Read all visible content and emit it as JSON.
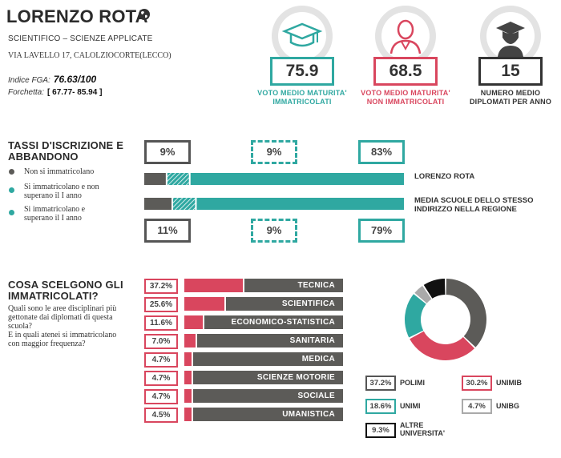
{
  "school": {
    "name": "LORENZO ROTA",
    "type": "SCIENTIFICO – SCIENZE APPLICATE",
    "address": "VIA LAVELLO 17, CALOLZIOCORTE(LECCO)",
    "fga_label": "Indice FGA:",
    "fga_value": "76.63/100",
    "range_label": "Forchetta:",
    "range_value": "[ 67.77- 85.94 ]"
  },
  "stats": [
    {
      "value": "75.9",
      "label_1": "VOTO MEDIO MATURITA'",
      "label_2": "IMMATRICOLATI",
      "color": "#2fa8a1",
      "icon": "graduation-cap-icon"
    },
    {
      "value": "68.5",
      "label_1": "VOTO MEDIO MATURITA'",
      "label_2": "NON IMMATRICOLATI",
      "color": "#d9465e",
      "icon": "person-icon"
    },
    {
      "value": "15",
      "label_1": "NUMERO MEDIO",
      "label_2": "DIPLOMATI PER ANNO",
      "color": "#333333",
      "icon": "graduate-icon"
    }
  ],
  "enrollment": {
    "title_1": "TASSI D'ISCRIZIONE E",
    "title_2": "ABBANDONO",
    "legend": [
      {
        "label": "Non si immatricolano",
        "color": "#5c5b58"
      },
      {
        "label_1": "Si immatricolano e non",
        "label_2": "superano il I anno",
        "color": "#2fa8a1"
      },
      {
        "label_1": "Si immatricolano e",
        "label_2": "superano il I anno",
        "color": "#2fa8a1"
      }
    ],
    "school_values": [
      "9%",
      "9%",
      "83%"
    ],
    "region_values": [
      "11%",
      "9%",
      "79%"
    ],
    "school_label": "LORENZO ROTA",
    "region_label_1": "MEDIA SCUOLE DELLO STESSO",
    "region_label_2": "INDIRIZZO NELLA REGIONE",
    "school_fractions": [
      0.09,
      0.09,
      0.83
    ],
    "region_fractions": [
      0.11,
      0.09,
      0.79
    ]
  },
  "choices": {
    "title_1": "COSA SCELGONO GLI",
    "title_2": "IMMATRICOLATI?",
    "question_lines": [
      "Quali sono le aree disciplinari più",
      "gettonate dai diplomati di questa",
      "scuola?",
      "E in quali atenei si immatricolano",
      "con maggior frequenza?"
    ],
    "areas": [
      {
        "pct": "37.2%",
        "name": "TECNICA",
        "value": 37.2
      },
      {
        "pct": "25.6%",
        "name": "SCIENTIFICA",
        "value": 25.6
      },
      {
        "pct": "11.6%",
        "name": "ECONOMICO-STATISTICA",
        "value": 11.6
      },
      {
        "pct": "7.0%",
        "name": "SANITARIA",
        "value": 7.0
      },
      {
        "pct": "4.7%",
        "name": "MEDICA",
        "value": 4.7
      },
      {
        "pct": "4.7%",
        "name": "SCIENZE MOTORIE",
        "value": 4.7
      },
      {
        "pct": "4.7%",
        "name": "SOCIALE",
        "value": 4.7
      },
      {
        "pct": "4.5%",
        "name": "UMANISTICA",
        "value": 4.5
      }
    ],
    "universities": [
      {
        "pct": "37.2%",
        "name": "POLIMI",
        "value": 37.2,
        "color": "#5c5b58"
      },
      {
        "pct": "30.2%",
        "name": "UNIMIB",
        "value": 30.2,
        "color": "#d9465e"
      },
      {
        "pct": "18.6%",
        "name": "UNIMI",
        "value": 18.6,
        "color": "#2fa8a1"
      },
      {
        "pct": "4.7%",
        "name": "UNIBG",
        "value": 4.7,
        "color": "#aaaaaa"
      },
      {
        "pct": "9.3%",
        "name_1": "ALTRE",
        "name_2": "UNIVERSITA'",
        "value": 9.3,
        "color": "#111111"
      }
    ]
  }
}
